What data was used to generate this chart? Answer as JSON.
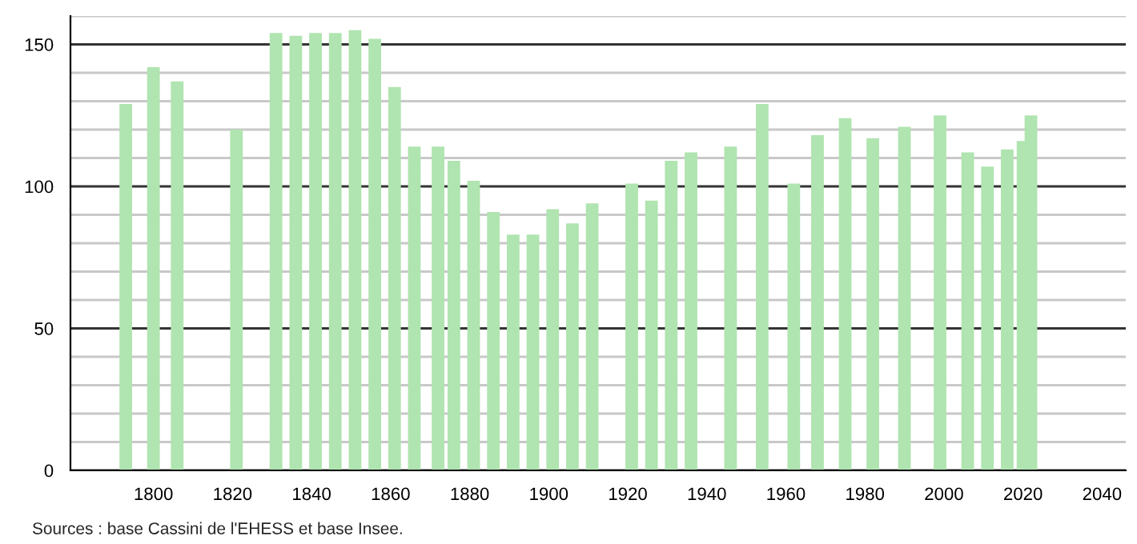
{
  "chart_data": {
    "type": "bar",
    "x": [
      1793,
      1800,
      1806,
      1821,
      1831,
      1836,
      1841,
      1846,
      1851,
      1856,
      1861,
      1866,
      1872,
      1876,
      1881,
      1886,
      1891,
      1896,
      1901,
      1906,
      1911,
      1921,
      1926,
      1931,
      1936,
      1946,
      1954,
      1962,
      1968,
      1975,
      1982,
      1990,
      1999,
      2006,
      2011,
      2016,
      2020,
      2022
    ],
    "values": [
      129,
      142,
      137,
      120,
      154,
      153,
      154,
      154,
      155,
      152,
      135,
      114,
      114,
      109,
      102,
      91,
      83,
      83,
      92,
      87,
      94,
      101,
      95,
      109,
      112,
      114,
      129,
      101,
      118,
      124,
      117,
      121,
      125,
      112,
      107,
      113,
      116,
      125
    ],
    "color": "#b0e4b0",
    "xlim": [
      1779,
      2046
    ],
    "xticks": [
      1800,
      1820,
      1840,
      1860,
      1880,
      1900,
      1920,
      1940,
      1960,
      1980,
      2000,
      2020,
      2040
    ],
    "ylim": [
      0,
      160
    ],
    "yticks": [
      0,
      {
        "value": 10,
        "label": null
      },
      {
        "value": 20,
        "label": null
      },
      {
        "value": 30,
        "label": null
      },
      {
        "value": 40,
        "label": null
      },
      50,
      {
        "value": 60,
        "label": null
      },
      {
        "value": 70,
        "label": null
      },
      {
        "value": 80,
        "label": null
      },
      {
        "value": 90,
        "label": null
      },
      100,
      {
        "value": 110,
        "label": null
      },
      {
        "value": 120,
        "label": null
      },
      {
        "value": 130,
        "label": null
      },
      {
        "value": 140,
        "label": null
      },
      150,
      {
        "value": 160,
        "label": null
      }
    ],
    "grid": "y",
    "annotations": [
      "Sources : base Cassini de l'EHESS et base Insee."
    ]
  }
}
